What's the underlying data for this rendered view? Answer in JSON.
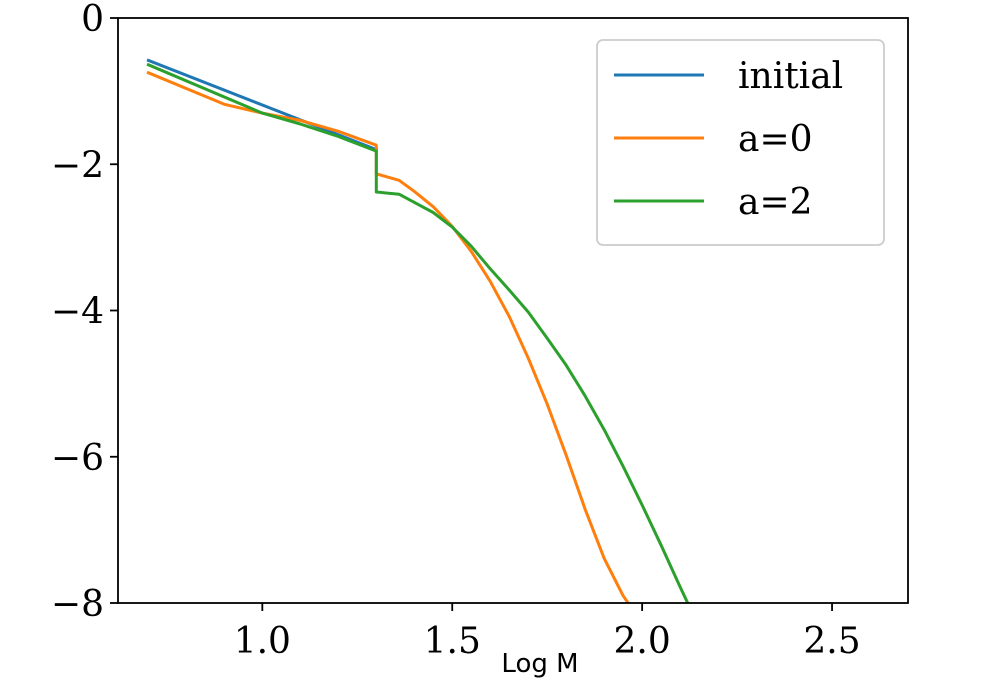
{
  "chart_data": {
    "type": "line",
    "xlabel": "Log M",
    "ylabel": "",
    "title": "",
    "xlim": [
      0.62,
      2.7
    ],
    "ylim": [
      -8,
      0
    ],
    "xticks": [
      1.0,
      1.5,
      2.0,
      2.5
    ],
    "xtick_labels": [
      "1.0",
      "1.5",
      "2.0",
      "2.5"
    ],
    "yticks": [
      0,
      -2,
      -4,
      -6,
      -8
    ],
    "ytick_labels": [
      "0",
      "−2",
      "−4",
      "−6",
      "−8"
    ],
    "grid": false,
    "legend_position": "top-right",
    "series": [
      {
        "name": "initial",
        "color": "#1f77b4",
        "x": [
          0.7,
          1.3
        ],
        "y": [
          -0.58,
          -1.8
        ]
      },
      {
        "name": "a=0",
        "color": "#ff7f0e",
        "x": [
          0.7,
          0.9,
          1.0,
          1.1,
          1.2,
          1.3,
          1.3,
          1.36,
          1.4,
          1.45,
          1.5,
          1.55,
          1.6,
          1.65,
          1.7,
          1.75,
          1.8,
          1.85,
          1.9,
          1.95,
          1.963
        ],
        "y": [
          -0.75,
          -1.18,
          -1.3,
          -1.4,
          -1.55,
          -1.74,
          -2.13,
          -2.22,
          -2.37,
          -2.58,
          -2.85,
          -3.19,
          -3.6,
          -4.08,
          -4.65,
          -5.28,
          -5.98,
          -6.72,
          -7.39,
          -7.9,
          -8.0
        ]
      },
      {
        "name": "a=2",
        "color": "#2ca02c",
        "x": [
          0.7,
          1.0,
          1.1,
          1.2,
          1.3,
          1.3,
          1.36,
          1.4,
          1.45,
          1.5,
          1.55,
          1.6,
          1.65,
          1.7,
          1.75,
          1.8,
          1.85,
          1.9,
          1.95,
          2.0,
          2.05,
          2.1,
          2.12
        ],
        "y": [
          -0.64,
          -1.3,
          -1.45,
          -1.62,
          -1.82,
          -2.38,
          -2.41,
          -2.52,
          -2.66,
          -2.86,
          -3.12,
          -3.43,
          -3.72,
          -4.02,
          -4.38,
          -4.75,
          -5.17,
          -5.63,
          -6.13,
          -6.66,
          -7.21,
          -7.78,
          -8.0
        ]
      }
    ]
  }
}
